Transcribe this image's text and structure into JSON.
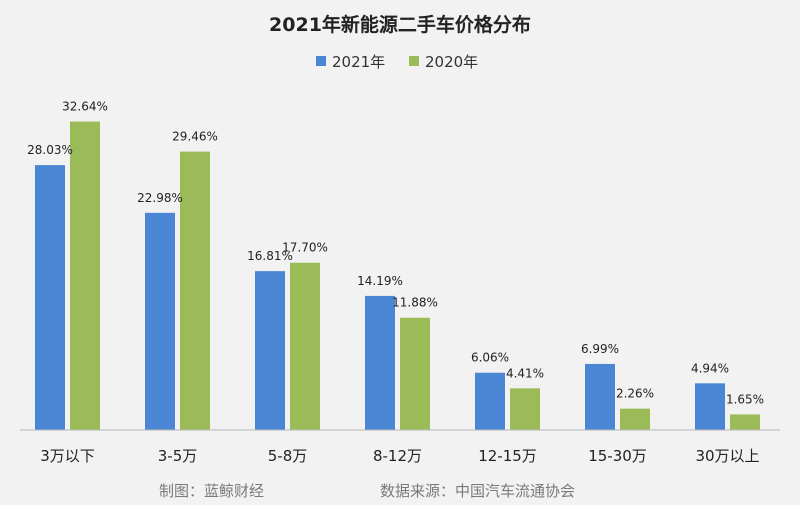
{
  "chart_data": {
    "type": "bar",
    "title": "2021年新能源二手车价格分布",
    "categories": [
      "3万以下",
      "3-5万",
      "5-8万",
      "8-12万",
      "12-15万",
      "15-30万",
      "30万以上"
    ],
    "series": [
      {
        "name": "2021年",
        "values": [
          28.03,
          22.98,
          16.81,
          14.19,
          6.06,
          6.99,
          4.94
        ],
        "labels": [
          "28.03%",
          "22.98%",
          "16.81%",
          "14.19%",
          "6.06%",
          "6.99%",
          "4.94%"
        ],
        "color": "#4a86d4"
      },
      {
        "name": "2020年",
        "values": [
          32.64,
          29.46,
          17.7,
          11.88,
          4.41,
          2.26,
          1.65
        ],
        "labels": [
          "32.64%",
          "29.46%",
          "17.70%",
          "11.88%",
          "4.41%",
          "2.26%",
          "1.65%"
        ],
        "color": "#9bbb59"
      }
    ],
    "ylim": [
      0,
      35
    ],
    "unit": "%",
    "grid": false,
    "legend_position": "top-center"
  },
  "footer": {
    "credit": "制图：蓝鲸财经",
    "source": "数据来源：中国汽车流通协会"
  }
}
